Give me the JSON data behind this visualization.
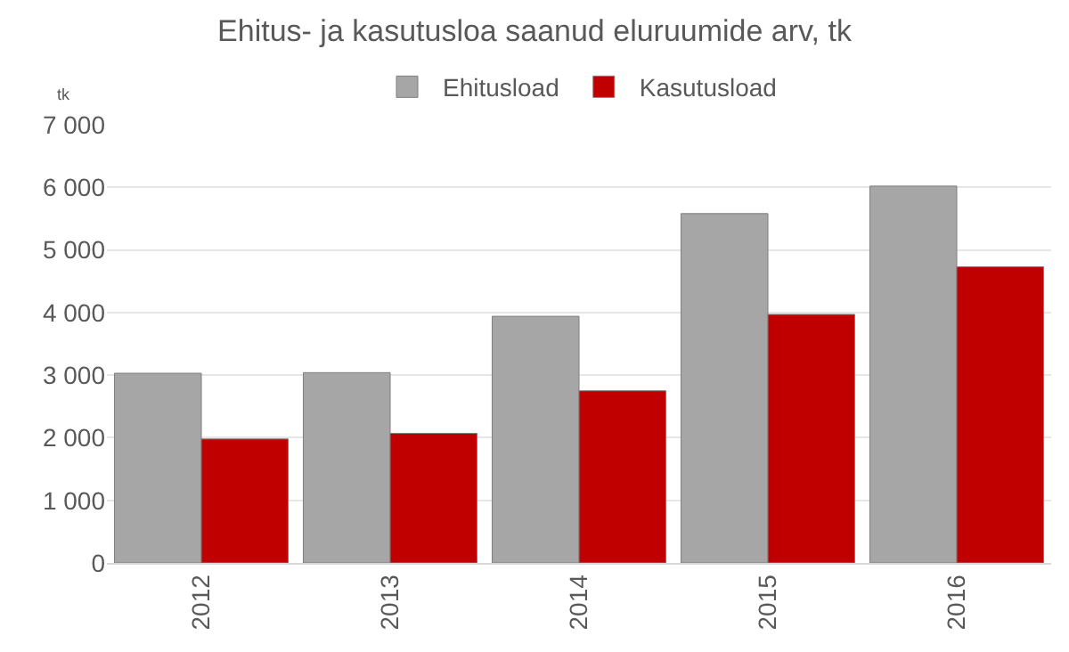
{
  "chart_data": {
    "type": "bar",
    "title": "Ehitus- ja kasutusloa saanud eluruumide arv, tk",
    "ylabel": "tk",
    "categories": [
      "2012",
      "2013",
      "2014",
      "2015",
      "2016"
    ],
    "series": [
      {
        "name": "Ehitusload",
        "color": "#a6a6a6",
        "values": [
          3030,
          3040,
          3940,
          5580,
          6020
        ]
      },
      {
        "name": "Kasutusload",
        "color": "#c00000",
        "values": [
          1980,
          2070,
          2750,
          3970,
          4730
        ]
      }
    ],
    "ylim": [
      0,
      7000
    ],
    "yticks": [
      0,
      {
        "value": 1000,
        "label": "1 000"
      },
      {
        "value": 2000,
        "label": "2 000"
      },
      {
        "value": 3000,
        "label": "3 000"
      },
      {
        "value": 4000,
        "label": "4 000"
      },
      {
        "value": 5000,
        "label": "5 000"
      },
      {
        "value": 6000,
        "label": "6 000"
      },
      {
        "value": 7000,
        "label": "7 000"
      }
    ],
    "grid": "y",
    "legend": "top"
  }
}
